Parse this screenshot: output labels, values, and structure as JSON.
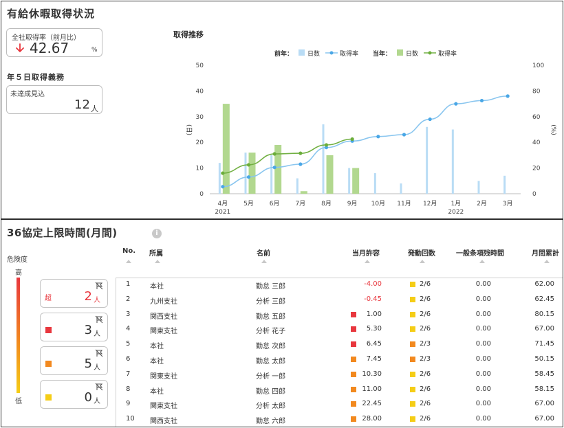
{
  "leave": {
    "title": "有給休暇取得状況",
    "company_rate": {
      "label": "全社取得率（前月比）",
      "value": "42.67",
      "unit": "%"
    },
    "five_day": {
      "heading": "年５日取得義務",
      "label": "未達成見込",
      "value": "12",
      "unit": "人"
    },
    "chart_title": "取得推移",
    "legend": {
      "prev": "前年：",
      "curr": "当年：",
      "days": "日数",
      "rate": "取得率"
    },
    "axis_left_label": "(日)",
    "axis_right_label": "(%)"
  },
  "chart_data": {
    "type": "bar",
    "categories": [
      "4月",
      "5月",
      "6月",
      "7月",
      "8月",
      "9月",
      "10月",
      "11月",
      "12月",
      "1月",
      "2月",
      "3月"
    ],
    "year_labels": [
      "2021",
      "2022"
    ],
    "ylim_left": [
      0,
      50
    ],
    "ylim_right": [
      0,
      100
    ],
    "yticks_left": [
      0,
      10,
      20,
      30,
      40,
      50
    ],
    "yticks_right": [
      0,
      20,
      40,
      60,
      80,
      100
    ],
    "series": [
      {
        "name": "日数",
        "year": "前年",
        "kind": "bar",
        "axis": "left",
        "color": "#b9dcf5",
        "values": [
          12,
          16,
          15,
          6,
          27,
          10,
          8,
          4,
          26,
          25,
          5,
          7
        ]
      },
      {
        "name": "日数",
        "year": "当年",
        "kind": "bar",
        "axis": "left",
        "color": "#b2d88f",
        "values": [
          35,
          16,
          19,
          1,
          15,
          10,
          null,
          null,
          null,
          null,
          null,
          null
        ]
      },
      {
        "name": "取得率",
        "year": "前年",
        "kind": "line",
        "axis": "right",
        "color": "#8ac6ef",
        "dot": "#4aa7e6",
        "values": [
          5.5,
          13,
          20.5,
          23,
          36,
          41,
          44.5,
          46,
          58,
          70,
          72.5,
          76
        ]
      },
      {
        "name": "取得率",
        "year": "当年",
        "kind": "line",
        "axis": "right",
        "color": "#72b043",
        "dot": "#6aad3a",
        "values": [
          16,
          22.5,
          31,
          31.5,
          38,
          42.5,
          null,
          null,
          null,
          null,
          null,
          null
        ]
      }
    ]
  },
  "overtime": {
    "title": "36協定上限時間(月間)",
    "info_icon": "info-icon",
    "risk_label": "危険度",
    "risk_high": "高",
    "risk_low": "低",
    "risk_cards": [
      {
        "icon": "flag-off-icon",
        "prefix": "超",
        "count": "2",
        "unit": "人",
        "color": "#e8373e"
      },
      {
        "icon": "flag-off-icon",
        "prefix": "",
        "count": "3",
        "unit": "人",
        "color": "#e8373e"
      },
      {
        "icon": "flag-off-icon",
        "prefix": "",
        "count": "5",
        "unit": "人",
        "color": "#f2891f"
      },
      {
        "icon": "flag-off-icon",
        "prefix": "",
        "count": "0",
        "unit": "人",
        "color": "#f5cd16"
      }
    ],
    "columns": [
      "No.",
      "所属",
      "名前",
      "当月許容",
      "発動回数",
      "一般条項残時間",
      "月間累計"
    ],
    "colors": {
      "red": "#e8373e",
      "orange": "#f2891f",
      "yellow": "#f5cd16"
    },
    "rows": [
      {
        "no": "1",
        "dept": "本社",
        "name": "勤怠 三郎",
        "allow": "-4.00",
        "allow_mark": "",
        "count": "2/6",
        "count_mark": "yellow",
        "remain": "0.00",
        "total": "62.00"
      },
      {
        "no": "2",
        "dept": "九州支社",
        "name": "分析 三郎",
        "allow": "-0.45",
        "allow_mark": "",
        "count": "2/6",
        "count_mark": "yellow",
        "remain": "0.00",
        "total": "62.45"
      },
      {
        "no": "3",
        "dept": "関西支社",
        "name": "勤怠 五郎",
        "allow": "1.00",
        "allow_mark": "red",
        "count": "2/6",
        "count_mark": "yellow",
        "remain": "0.00",
        "total": "80.15"
      },
      {
        "no": "4",
        "dept": "関東支社",
        "name": "分析 花子",
        "allow": "5.30",
        "allow_mark": "red",
        "count": "2/6",
        "count_mark": "yellow",
        "remain": "0.00",
        "total": "67.00"
      },
      {
        "no": "5",
        "dept": "本社",
        "name": "勤怠 次郎",
        "allow": "6.45",
        "allow_mark": "red",
        "count": "2/3",
        "count_mark": "orange",
        "remain": "0.00",
        "total": "71.45"
      },
      {
        "no": "6",
        "dept": "本社",
        "name": "勤怠 太郎",
        "allow": "7.45",
        "allow_mark": "orange",
        "count": "2/3",
        "count_mark": "orange",
        "remain": "0.00",
        "total": "50.15"
      },
      {
        "no": "7",
        "dept": "関東支社",
        "name": "分析 一郎",
        "allow": "10.30",
        "allow_mark": "orange",
        "count": "2/6",
        "count_mark": "yellow",
        "remain": "0.00",
        "total": "58.45"
      },
      {
        "no": "8",
        "dept": "本社",
        "name": "勤怠 四郎",
        "allow": "11.00",
        "allow_mark": "orange",
        "count": "2/6",
        "count_mark": "yellow",
        "remain": "0.00",
        "total": "58.15"
      },
      {
        "no": "9",
        "dept": "関東支社",
        "name": "分析 太郎",
        "allow": "22.45",
        "allow_mark": "orange",
        "count": "2/6",
        "count_mark": "yellow",
        "remain": "0.00",
        "total": "67.00"
      },
      {
        "no": "10",
        "dept": "関西支社",
        "name": "勤怠 六郎",
        "allow": "28.00",
        "allow_mark": "orange",
        "count": "2/6",
        "count_mark": "yellow",
        "remain": "0.00",
        "total": "67.00"
      }
    ]
  }
}
